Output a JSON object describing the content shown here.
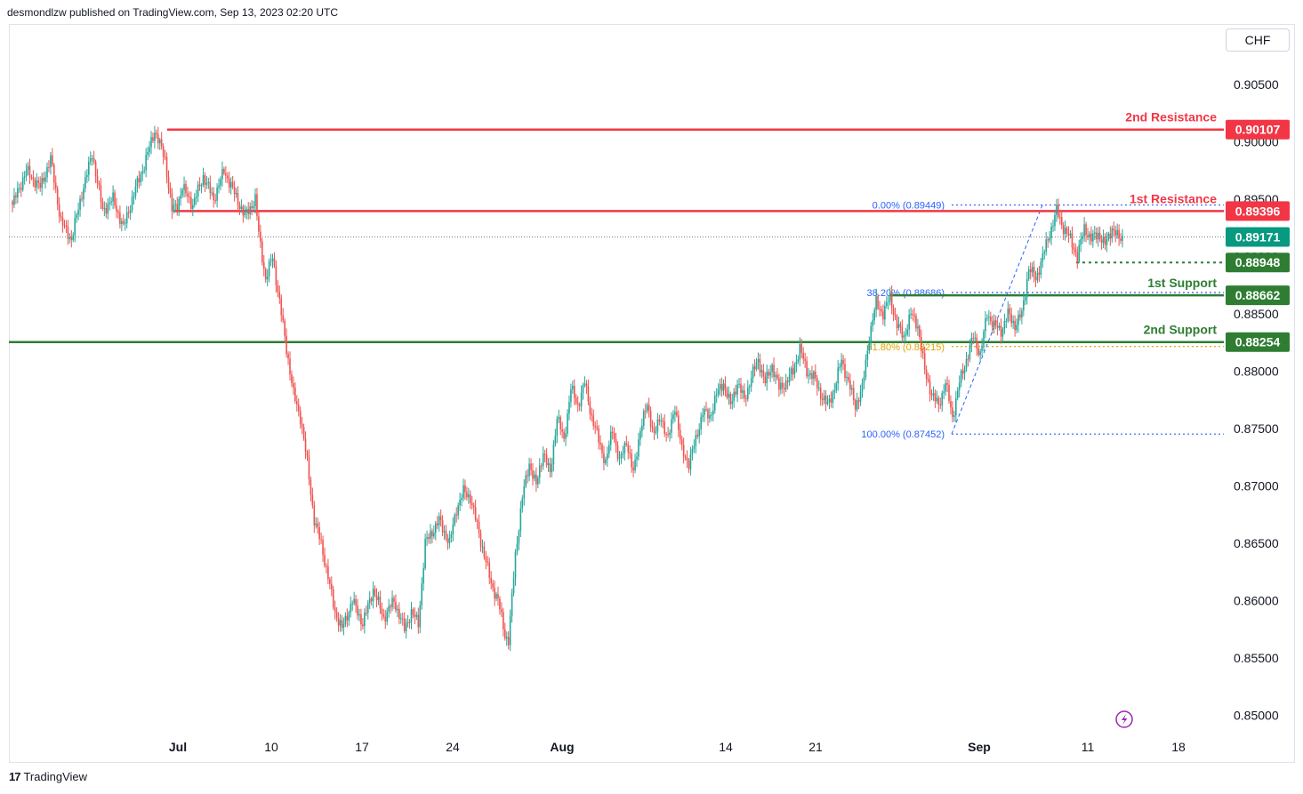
{
  "header": {
    "text": "desmondlzw published on TradingView.com, Sep 13, 2023 02:20 UTC"
  },
  "footer": {
    "logo": "17",
    "brand": "TradingView"
  },
  "currency": "CHF",
  "colors": {
    "up": "#26a69a",
    "down": "#ef5350",
    "resistance": "#f23645",
    "support": "#2e7d32",
    "fib": "#2962ff",
    "fib618": "#e6a100",
    "last": "#089981"
  },
  "chart_data": {
    "type": "candlestick",
    "y_ticks": [
      "0.90500",
      "0.90000",
      "0.89500",
      "0.89000",
      "0.88500",
      "0.88000",
      "0.87500",
      "0.87000",
      "0.86500",
      "0.86000",
      "0.85500",
      "0.85000"
    ],
    "y_tick_values": [
      0.905,
      0.9,
      0.895,
      0.89,
      0.885,
      0.88,
      0.875,
      0.87,
      0.865,
      0.86,
      0.855,
      0.85
    ],
    "x_ticks": [
      "Jul",
      "10",
      "17",
      "24",
      "Aug",
      "14",
      "21",
      "Sep",
      "11",
      "18"
    ],
    "levels": [
      {
        "name": "2nd Resistance",
        "value": "0.90107",
        "price": 0.90107,
        "kind": "resistance"
      },
      {
        "name": "1st Resistance",
        "value": "0.89396",
        "price": 0.89396,
        "kind": "resistance"
      },
      {
        "name": "",
        "value": "0.88948",
        "price": 0.88948,
        "kind": "pivot"
      },
      {
        "name": "1st Support",
        "value": "0.88662",
        "price": 0.88662,
        "kind": "support"
      },
      {
        "name": "2nd Support",
        "value": "0.88254",
        "price": 0.88254,
        "kind": "support"
      }
    ],
    "last_price": {
      "value": "0.89171",
      "price": 0.89171
    },
    "fib_levels": [
      {
        "label": "0.00% (0.89449)",
        "price": 0.89449
      },
      {
        "label": "38.20% (0.88686)",
        "price": 0.88686
      },
      {
        "label": "61.80% (0.88215)",
        "price": 0.88215
      },
      {
        "label": "100.00% (0.87452)",
        "price": 0.87452
      }
    ],
    "price_path": [
      [
        0,
        0.8945
      ],
      [
        8,
        0.8975
      ],
      [
        16,
        0.896
      ],
      [
        22,
        0.8985
      ],
      [
        28,
        0.893
      ],
      [
        34,
        0.8915
      ],
      [
        40,
        0.8955
      ],
      [
        46,
        0.899
      ],
      [
        52,
        0.894
      ],
      [
        58,
        0.895
      ],
      [
        64,
        0.8925
      ],
      [
        70,
        0.8955
      ],
      [
        76,
        0.898
      ],
      [
        82,
        0.901
      ],
      [
        88,
        0.8985
      ],
      [
        92,
        0.894
      ],
      [
        95,
        0.8945
      ],
      [
        98,
        0.896
      ],
      [
        104,
        0.8945
      ],
      [
        110,
        0.897
      ],
      [
        116,
        0.895
      ],
      [
        122,
        0.8975
      ],
      [
        128,
        0.8955
      ],
      [
        134,
        0.8935
      ],
      [
        140,
        0.895
      ],
      [
        142,
        0.892
      ],
      [
        146,
        0.888
      ],
      [
        150,
        0.89
      ],
      [
        154,
        0.886
      ],
      [
        158,
        0.882
      ],
      [
        162,
        0.878
      ],
      [
        166,
        0.876
      ],
      [
        170,
        0.872
      ],
      [
        174,
        0.867
      ],
      [
        178,
        0.865
      ],
      [
        182,
        0.862
      ],
      [
        186,
        0.859
      ],
      [
        190,
        0.8575
      ],
      [
        196,
        0.86
      ],
      [
        202,
        0.858
      ],
      [
        208,
        0.861
      ],
      [
        214,
        0.8585
      ],
      [
        220,
        0.86
      ],
      [
        226,
        0.8575
      ],
      [
        230,
        0.859
      ],
      [
        234,
        0.858
      ],
      [
        238,
        0.865
      ],
      [
        242,
        0.866
      ],
      [
        246,
        0.867
      ],
      [
        252,
        0.865
      ],
      [
        256,
        0.868
      ],
      [
        260,
        0.8695
      ],
      [
        264,
        0.869
      ],
      [
        268,
        0.8665
      ],
      [
        272,
        0.864
      ],
      [
        276,
        0.8615
      ],
      [
        280,
        0.86
      ],
      [
        284,
        0.857
      ],
      [
        286,
        0.8565
      ],
      [
        290,
        0.864
      ],
      [
        294,
        0.869
      ],
      [
        298,
        0.872
      ],
      [
        302,
        0.87
      ],
      [
        306,
        0.873
      ],
      [
        310,
        0.871
      ],
      [
        314,
        0.876
      ],
      [
        318,
        0.874
      ],
      [
        322,
        0.8785
      ],
      [
        326,
        0.877
      ],
      [
        330,
        0.879
      ],
      [
        334,
        0.876
      ],
      [
        338,
        0.874
      ],
      [
        342,
        0.872
      ],
      [
        346,
        0.875
      ],
      [
        350,
        0.872
      ],
      [
        354,
        0.874
      ],
      [
        358,
        0.871
      ],
      [
        362,
        0.875
      ],
      [
        366,
        0.877
      ],
      [
        370,
        0.8745
      ],
      [
        374,
        0.876
      ],
      [
        378,
        0.874
      ],
      [
        382,
        0.877
      ],
      [
        386,
        0.873
      ],
      [
        390,
        0.872
      ],
      [
        394,
        0.874
      ],
      [
        398,
        0.8765
      ],
      [
        402,
        0.876
      ],
      [
        406,
        0.878
      ],
      [
        410,
        0.879
      ],
      [
        414,
        0.877
      ],
      [
        418,
        0.879
      ],
      [
        422,
        0.8775
      ],
      [
        426,
        0.8795
      ],
      [
        430,
        0.881
      ],
      [
        434,
        0.879
      ],
      [
        438,
        0.8805
      ],
      [
        442,
        0.8785
      ],
      [
        446,
        0.879
      ],
      [
        450,
        0.88
      ],
      [
        454,
        0.882
      ],
      [
        458,
        0.88
      ],
      [
        462,
        0.8795
      ],
      [
        466,
        0.878
      ],
      [
        470,
        0.877
      ],
      [
        474,
        0.8785
      ],
      [
        478,
        0.881
      ],
      [
        482,
        0.879
      ],
      [
        486,
        0.877
      ],
      [
        490,
        0.8785
      ],
      [
        494,
        0.883
      ],
      [
        498,
        0.886
      ],
      [
        502,
        0.885
      ],
      [
        506,
        0.8865
      ],
      [
        510,
        0.884
      ],
      [
        514,
        0.883
      ],
      [
        518,
        0.885
      ],
      [
        522,
        0.884
      ],
      [
        526,
        0.88
      ],
      [
        530,
        0.878
      ],
      [
        534,
        0.877
      ],
      [
        538,
        0.879
      ],
      [
        542,
        0.876
      ],
      [
        546,
        0.879
      ],
      [
        550,
        0.881
      ],
      [
        554,
        0.883
      ],
      [
        558,
        0.8815
      ],
      [
        562,
        0.885
      ],
      [
        566,
        0.884
      ],
      [
        570,
        0.8835
      ],
      [
        574,
        0.885
      ],
      [
        578,
        0.884
      ],
      [
        582,
        0.885
      ],
      [
        586,
        0.889
      ],
      [
        590,
        0.888
      ],
      [
        594,
        0.89
      ],
      [
        598,
        0.892
      ],
      [
        602,
        0.894
      ],
      [
        606,
        0.8925
      ],
      [
        610,
        0.8915
      ],
      [
        614,
        0.89
      ],
      [
        618,
        0.8925
      ],
      [
        622,
        0.8915
      ],
      [
        626,
        0.892
      ],
      [
        630,
        0.891
      ],
      [
        634,
        0.8925
      ],
      [
        638,
        0.8915
      ],
      [
        640,
        0.8917
      ]
    ]
  }
}
